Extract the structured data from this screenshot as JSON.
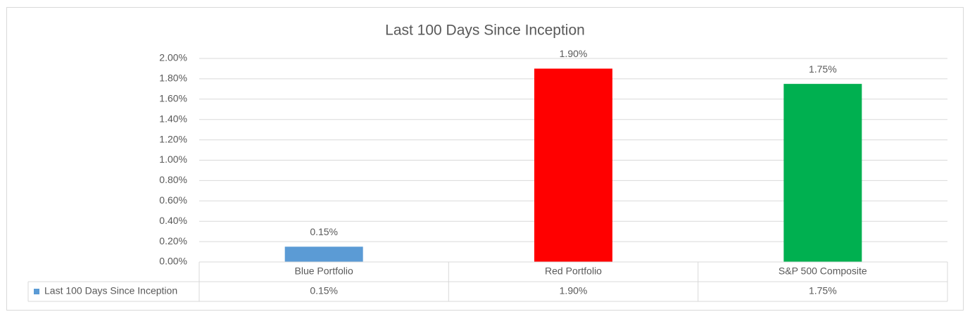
{
  "chart_data": {
    "type": "bar",
    "title": "Last 100 Days Since Inception",
    "categories": [
      "Blue Portfolio",
      "Red Portfolio",
      "S&P 500 Composite"
    ],
    "series": [
      {
        "name": "Last 100 Days Since Inception",
        "color": "#5b9bd5",
        "values": [
          0.15,
          1.9,
          1.75
        ],
        "value_labels": [
          "0.15%",
          "1.90%",
          "1.75%"
        ],
        "point_colors": [
          "#5b9bd5",
          "#ff0000",
          "#00b050"
        ]
      }
    ],
    "ylim": [
      0,
      2
    ],
    "yticks": [
      {
        "value": 0,
        "label": "0.00%"
      },
      {
        "value": 0.2,
        "label": "0.20%"
      },
      {
        "value": 0.4,
        "label": "0.40%"
      },
      {
        "value": 0.6,
        "label": "0.60%"
      },
      {
        "value": 0.8,
        "label": "0.80%"
      },
      {
        "value": 1.0,
        "label": "1.00%"
      },
      {
        "value": 1.2,
        "label": "1.20%"
      },
      {
        "value": 1.4,
        "label": "1.40%"
      },
      {
        "value": 1.6,
        "label": "1.60%"
      },
      {
        "value": 1.8,
        "label": "1.80%"
      },
      {
        "value": 2.0,
        "label": "2.00%"
      }
    ],
    "grid": true,
    "data_table": true
  }
}
